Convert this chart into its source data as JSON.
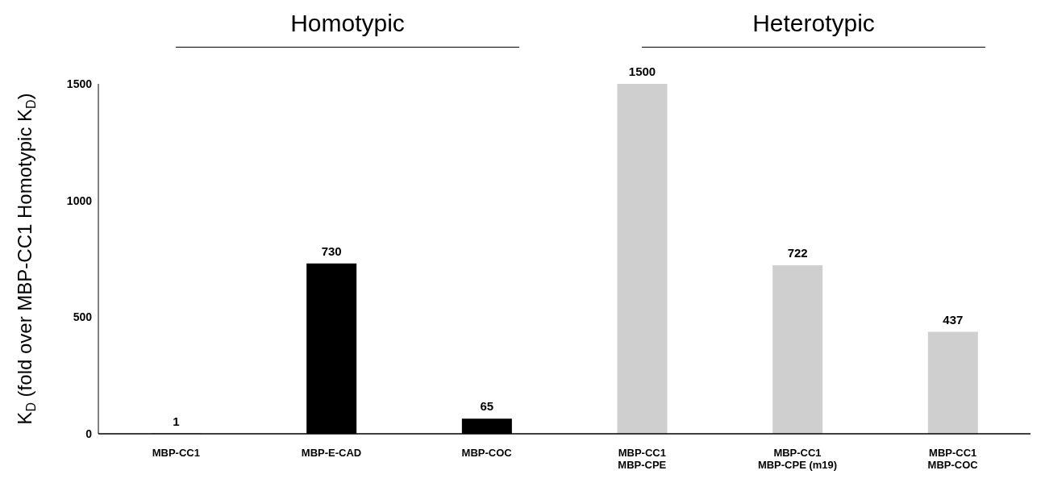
{
  "chart_data": {
    "type": "bar",
    "categories": [
      "MBP-CC1",
      "MBP-E-CAD",
      "MBP-COC",
      "MBP-CC1\nMBP-CPE",
      "MBP-CC1\nMBP-CPE (m19)",
      "MBP-CC1\nMBP-COC"
    ],
    "values": [
      1,
      730,
      65,
      1500,
      722,
      437
    ],
    "colors": [
      "#000000",
      "#000000",
      "#000000",
      "#d0cfd0",
      "#d0cfd0",
      "#d0cfd0"
    ],
    "ylabel": "K$_{D}$ (fold over MBP-CC1 Homotypic K$_{D}$)",
    "ylim": [
      0,
      1500
    ],
    "yticks": [
      0,
      500,
      1000,
      1500
    ],
    "data_labels": true,
    "grid": false,
    "legend": false,
    "annotations": [
      "Homotypic",
      "Heterotypic"
    ]
  }
}
